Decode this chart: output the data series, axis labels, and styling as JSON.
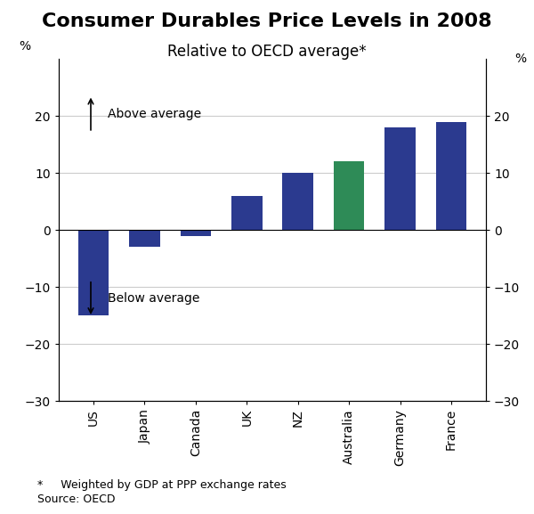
{
  "title": "Consumer Durables Price Levels in 2008",
  "subtitle": "Relative to OECD average*",
  "categories": [
    "US",
    "Japan",
    "Canada",
    "UK",
    "NZ",
    "Australia",
    "Germany",
    "France"
  ],
  "values": [
    -15,
    -3,
    -1,
    6,
    10,
    12,
    18,
    19
  ],
  "bar_colors": [
    "#2b3a8f",
    "#2b3a8f",
    "#2b3a8f",
    "#2b3a8f",
    "#2b3a8f",
    "#2e8b57",
    "#2b3a8f",
    "#2b3a8f"
  ],
  "ylim": [
    -30,
    30
  ],
  "yticks": [
    -30,
    -20,
    -10,
    0,
    10,
    20
  ],
  "ylabel_left": "%",
  "ylabel_right": "%",
  "annotation_above": "Above average",
  "annotation_below": "Below average",
  "footnote_line1": "*     Weighted by GDP at PPP exchange rates",
  "footnote_line2": "Source: OECD",
  "background_color": "#ffffff",
  "grid_color": "#cccccc",
  "bar_width": 0.6,
  "title_fontsize": 16,
  "subtitle_fontsize": 12,
  "tick_fontsize": 10,
  "annotation_fontsize": 10,
  "footnote_fontsize": 9
}
